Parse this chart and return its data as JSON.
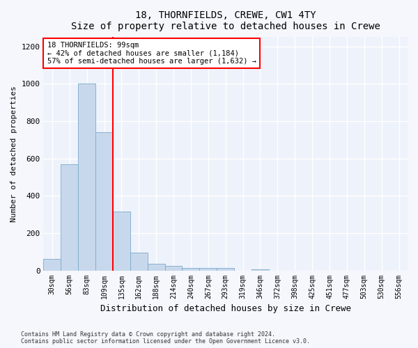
{
  "title": "18, THORNFIELDS, CREWE, CW1 4TY",
  "subtitle": "Size of property relative to detached houses in Crewe",
  "xlabel": "Distribution of detached houses by size in Crewe",
  "ylabel": "Number of detached properties",
  "bar_color": "#c8d8ec",
  "bar_edge_color": "#7aaac8",
  "background_color": "#eef2fb",
  "fig_background_color": "#f5f7fd",
  "grid_color": "#ffffff",
  "categories": [
    "30sqm",
    "56sqm",
    "83sqm",
    "109sqm",
    "135sqm",
    "162sqm",
    "188sqm",
    "214sqm",
    "240sqm",
    "267sqm",
    "293sqm",
    "319sqm",
    "346sqm",
    "372sqm",
    "398sqm",
    "425sqm",
    "451sqm",
    "477sqm",
    "503sqm",
    "530sqm",
    "556sqm"
  ],
  "values": [
    60,
    570,
    1000,
    740,
    315,
    95,
    35,
    25,
    15,
    15,
    15,
    0,
    5,
    0,
    0,
    0,
    0,
    0,
    0,
    0,
    0
  ],
  "redline_index": 3,
  "ylim": [
    0,
    1250
  ],
  "yticks": [
    0,
    200,
    400,
    600,
    800,
    1000,
    1200
  ],
  "annotation_text": "18 THORNFIELDS: 99sqm\n← 42% of detached houses are smaller (1,184)\n57% of semi-detached houses are larger (1,632) →",
  "footer_line1": "Contains HM Land Registry data © Crown copyright and database right 2024.",
  "footer_line2": "Contains public sector information licensed under the Open Government Licence v3.0."
}
